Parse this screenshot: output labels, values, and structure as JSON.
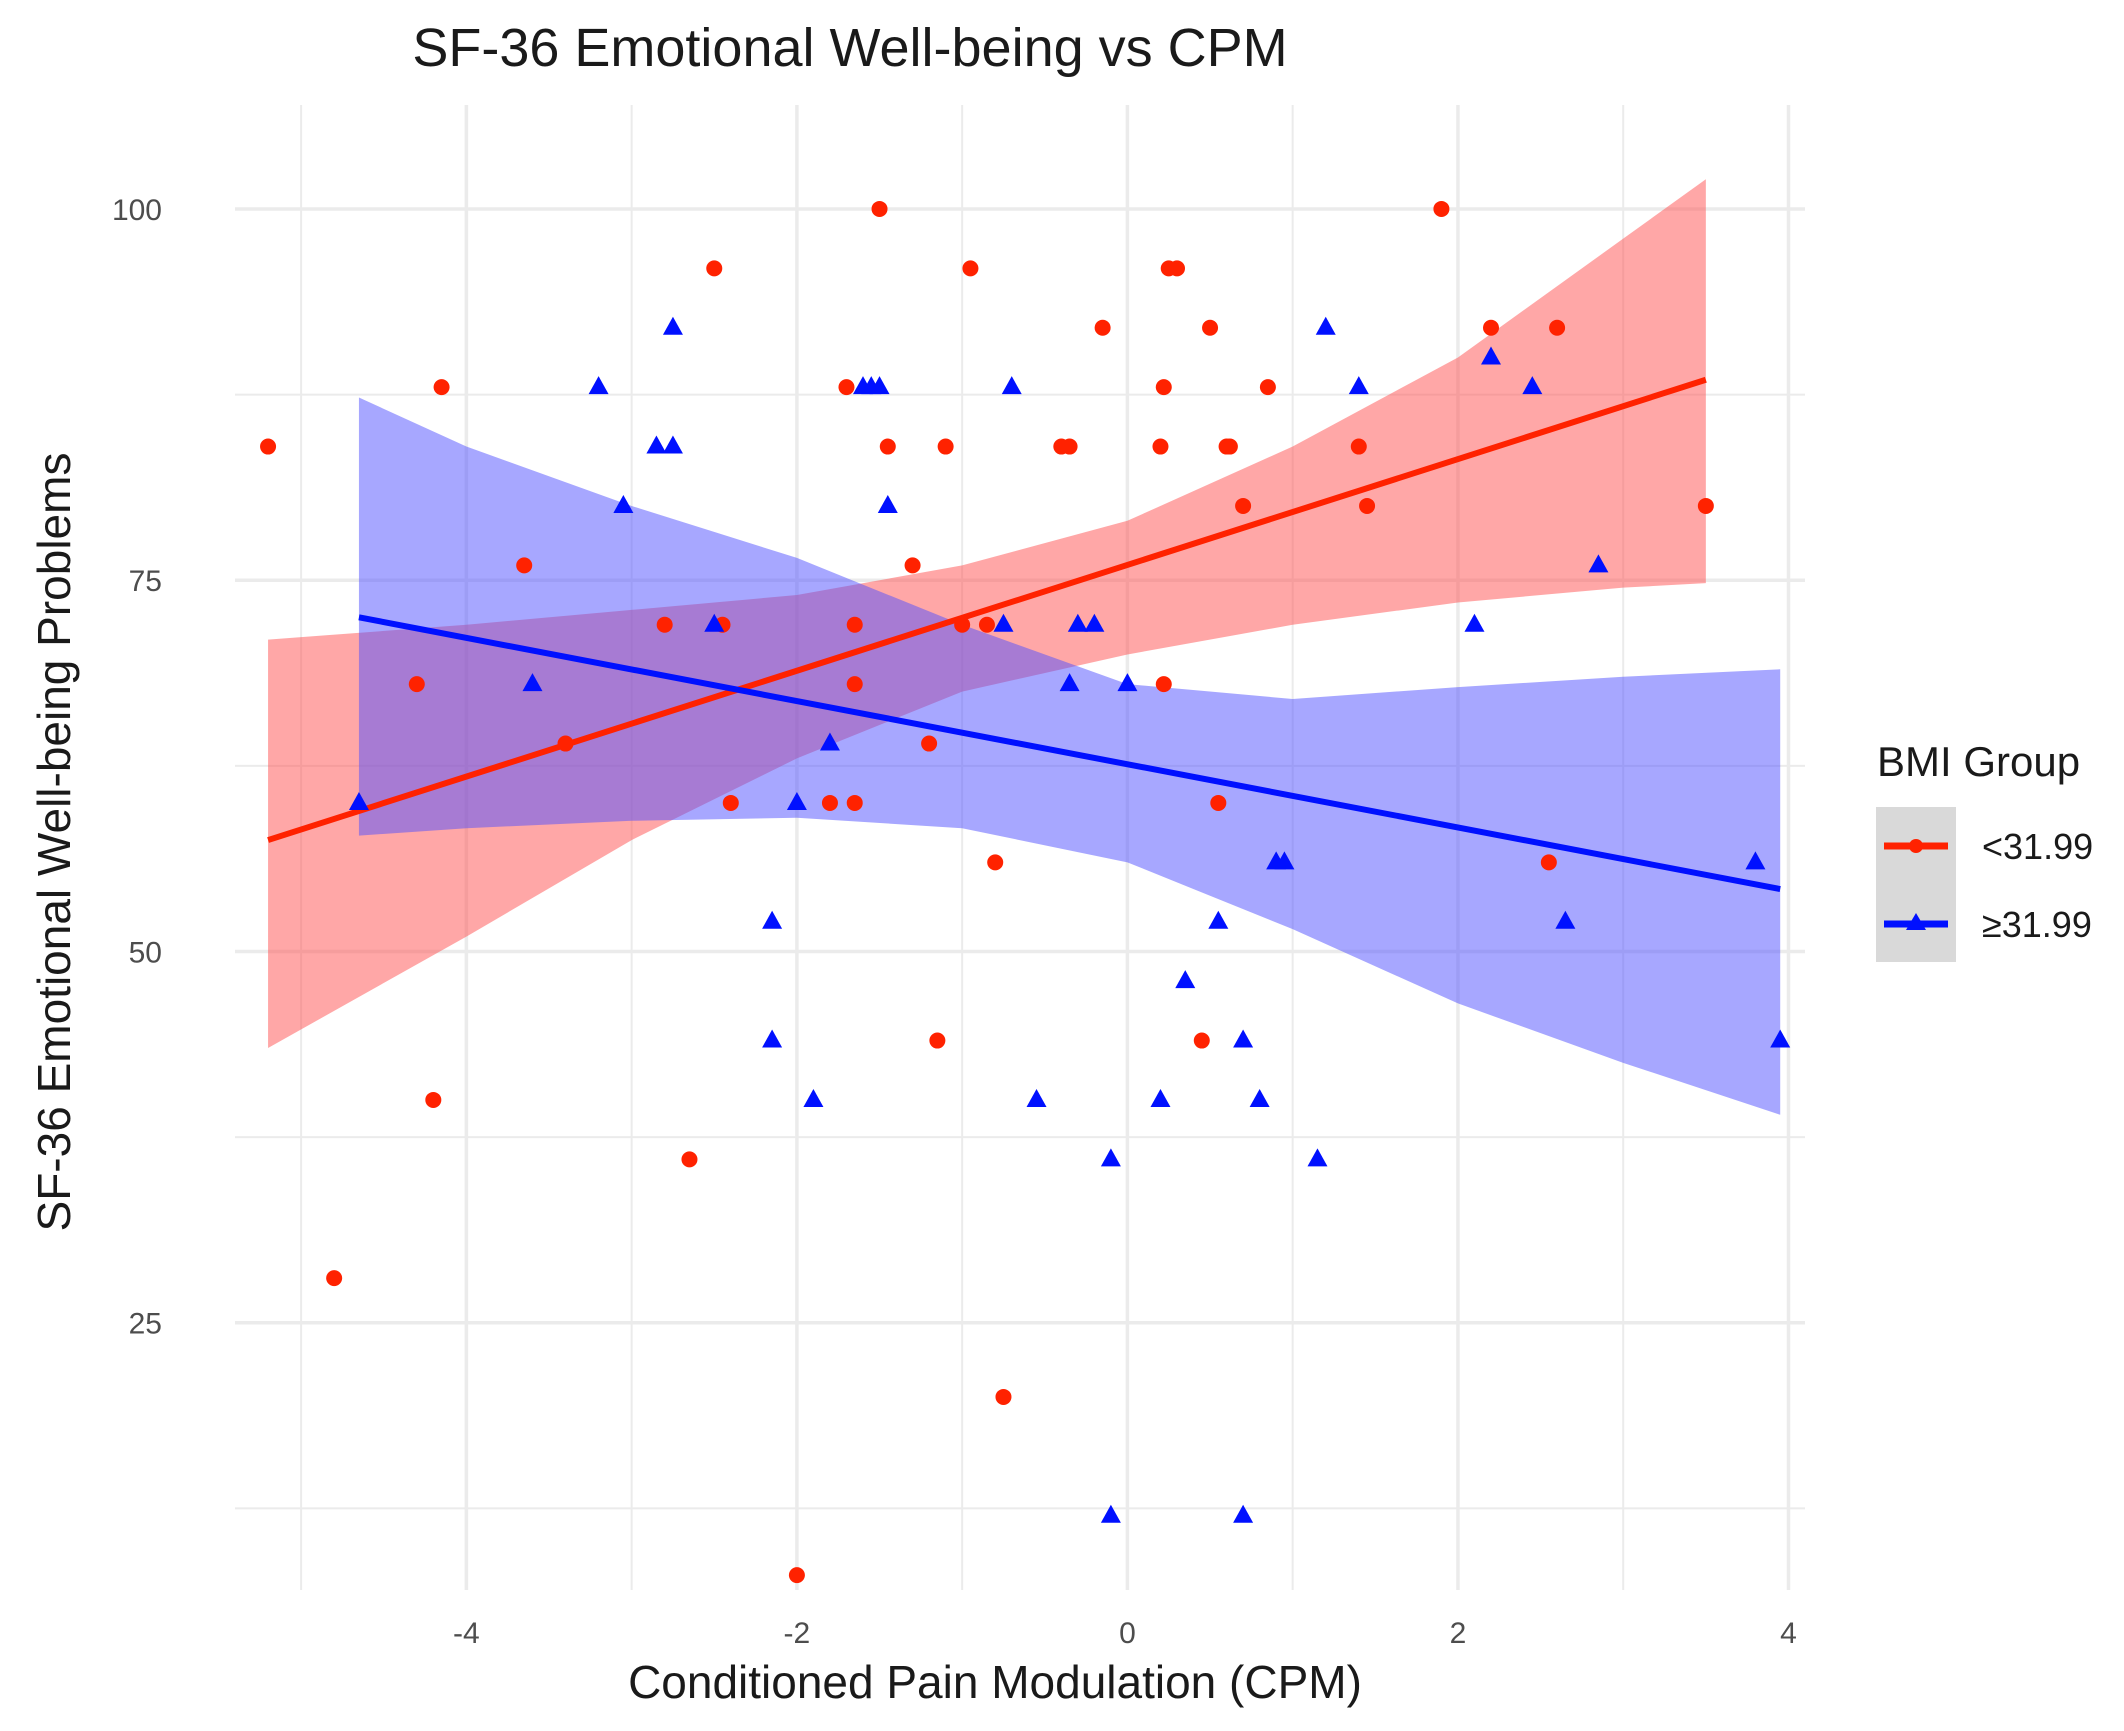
{
  "chart_data": {
    "type": "scatter",
    "title": "SF-36 Emotional Well-being  vs CPM",
    "xlabel": "Conditioned Pain Modulation (CPM)",
    "ylabel": "SF-36 Emotional Well-being  Problems",
    "xlim": [
      -5.4,
      4.1
    ],
    "ylim": [
      7,
      107
    ],
    "x_ticks": [
      "-4",
      "-2",
      "0",
      "2",
      "4"
    ],
    "x_tick_values": [
      -4,
      -2,
      0,
      2,
      4
    ],
    "y_ticks": [
      "25",
      "50",
      "75",
      "100"
    ],
    "y_tick_values": [
      25,
      50,
      75,
      100
    ],
    "grid": true,
    "legend": {
      "title": "BMI Group",
      "position": "right",
      "entries": [
        "<31.99",
        "≥31.99"
      ]
    },
    "colors": {
      "low": "#ff2200",
      "high": "#0010ff",
      "low_band": "#ff5050",
      "high_band": "#5050ff",
      "grid": "#ebebeb",
      "legend_key_bg": "#d9d9d9"
    },
    "series": [
      {
        "name": "<31.99",
        "marker": "circle",
        "color": "#ff2200",
        "points": [
          [
            -5.2,
            84
          ],
          [
            -4.15,
            88
          ],
          [
            -4.3,
            68
          ],
          [
            -4.2,
            40
          ],
          [
            -4.8,
            28
          ],
          [
            -3.65,
            76
          ],
          [
            -3.4,
            64
          ],
          [
            -2.8,
            72
          ],
          [
            -2.5,
            96
          ],
          [
            -2.45,
            72
          ],
          [
            -2.4,
            60
          ],
          [
            -2.65,
            36
          ],
          [
            -2.0,
            8
          ],
          [
            -1.8,
            60
          ],
          [
            -1.7,
            88
          ],
          [
            -1.65,
            72
          ],
          [
            -1.65,
            68
          ],
          [
            -1.65,
            60
          ],
          [
            -1.5,
            100
          ],
          [
            -1.45,
            84
          ],
          [
            -1.3,
            76
          ],
          [
            -1.2,
            64
          ],
          [
            -1.15,
            44
          ],
          [
            -1.1,
            84
          ],
          [
            -1.0,
            72
          ],
          [
            -0.95,
            96
          ],
          [
            -0.85,
            72
          ],
          [
            -0.8,
            56
          ],
          [
            -0.75,
            20
          ],
          [
            -0.4,
            84
          ],
          [
            -0.35,
            84
          ],
          [
            -0.15,
            92
          ],
          [
            0.2,
            84
          ],
          [
            0.22,
            88
          ],
          [
            0.22,
            68
          ],
          [
            0.25,
            96
          ],
          [
            0.3,
            96
          ],
          [
            0.5,
            92
          ],
          [
            0.55,
            60
          ],
          [
            0.6,
            84
          ],
          [
            0.62,
            84
          ],
          [
            0.45,
            44
          ],
          [
            0.7,
            80
          ],
          [
            0.85,
            88
          ],
          [
            1.4,
            84
          ],
          [
            1.45,
            80
          ],
          [
            1.9,
            100
          ],
          [
            2.2,
            92
          ],
          [
            2.6,
            92
          ],
          [
            2.55,
            56
          ],
          [
            3.5,
            80
          ]
        ],
        "fit": {
          "x": [
            -5.2,
            3.5
          ],
          "y": [
            57.5,
            88.5
          ]
        },
        "band": {
          "x": [
            -5.2,
            -4.0,
            -3.0,
            -2.0,
            -1.0,
            0.0,
            1.0,
            2.0,
            3.0,
            3.5
          ],
          "upper": [
            71,
            72,
            73,
            74,
            76,
            79,
            84,
            90,
            98,
            102
          ],
          "lower": [
            43.5,
            51,
            57.5,
            63,
            67.5,
            70,
            72,
            73.5,
            74.5,
            74.8
          ]
        }
      },
      {
        "name": "≥31.99",
        "marker": "triangle",
        "color": "#0010ff",
        "points": [
          [
            -4.65,
            60
          ],
          [
            -3.6,
            68
          ],
          [
            -3.2,
            88
          ],
          [
            -3.05,
            80
          ],
          [
            -2.85,
            84
          ],
          [
            -2.75,
            84
          ],
          [
            -2.75,
            92
          ],
          [
            -2.5,
            72
          ],
          [
            -2.15,
            52
          ],
          [
            -2.15,
            44
          ],
          [
            -2.0,
            60
          ],
          [
            -1.9,
            40
          ],
          [
            -1.8,
            64
          ],
          [
            -1.6,
            88
          ],
          [
            -1.55,
            88
          ],
          [
            -1.5,
            88
          ],
          [
            -1.45,
            80
          ],
          [
            -0.75,
            72
          ],
          [
            -0.7,
            88
          ],
          [
            -0.55,
            40
          ],
          [
            -0.35,
            68
          ],
          [
            -0.3,
            72
          ],
          [
            -0.2,
            72
          ],
          [
            -0.1,
            36
          ],
          [
            -0.1,
            12
          ],
          [
            0.0,
            68
          ],
          [
            0.2,
            40
          ],
          [
            0.35,
            48
          ],
          [
            0.55,
            52
          ],
          [
            0.7,
            44
          ],
          [
            0.7,
            12
          ],
          [
            0.8,
            40
          ],
          [
            0.9,
            56
          ],
          [
            0.95,
            56
          ],
          [
            1.15,
            36
          ],
          [
            1.2,
            92
          ],
          [
            1.4,
            88
          ],
          [
            2.1,
            72
          ],
          [
            2.2,
            90
          ],
          [
            2.45,
            88
          ],
          [
            2.65,
            52
          ],
          [
            2.85,
            76
          ],
          [
            3.8,
            56
          ],
          [
            3.95,
            44
          ]
        ],
        "fit": {
          "x": [
            -4.65,
            3.95
          ],
          "y": [
            72.5,
            54.2
          ]
        },
        "band": {
          "x": [
            -4.65,
            -4.0,
            -3.0,
            -2.0,
            -1.0,
            0.0,
            1.0,
            2.0,
            3.0,
            3.95
          ],
          "upper": [
            87.3,
            84,
            80,
            76.5,
            72,
            68,
            67,
            67.8,
            68.5,
            69
          ],
          "lower": [
            57.8,
            58.3,
            58.8,
            59,
            58.3,
            56,
            51.5,
            46.5,
            42.5,
            39
          ]
        }
      }
    ]
  }
}
